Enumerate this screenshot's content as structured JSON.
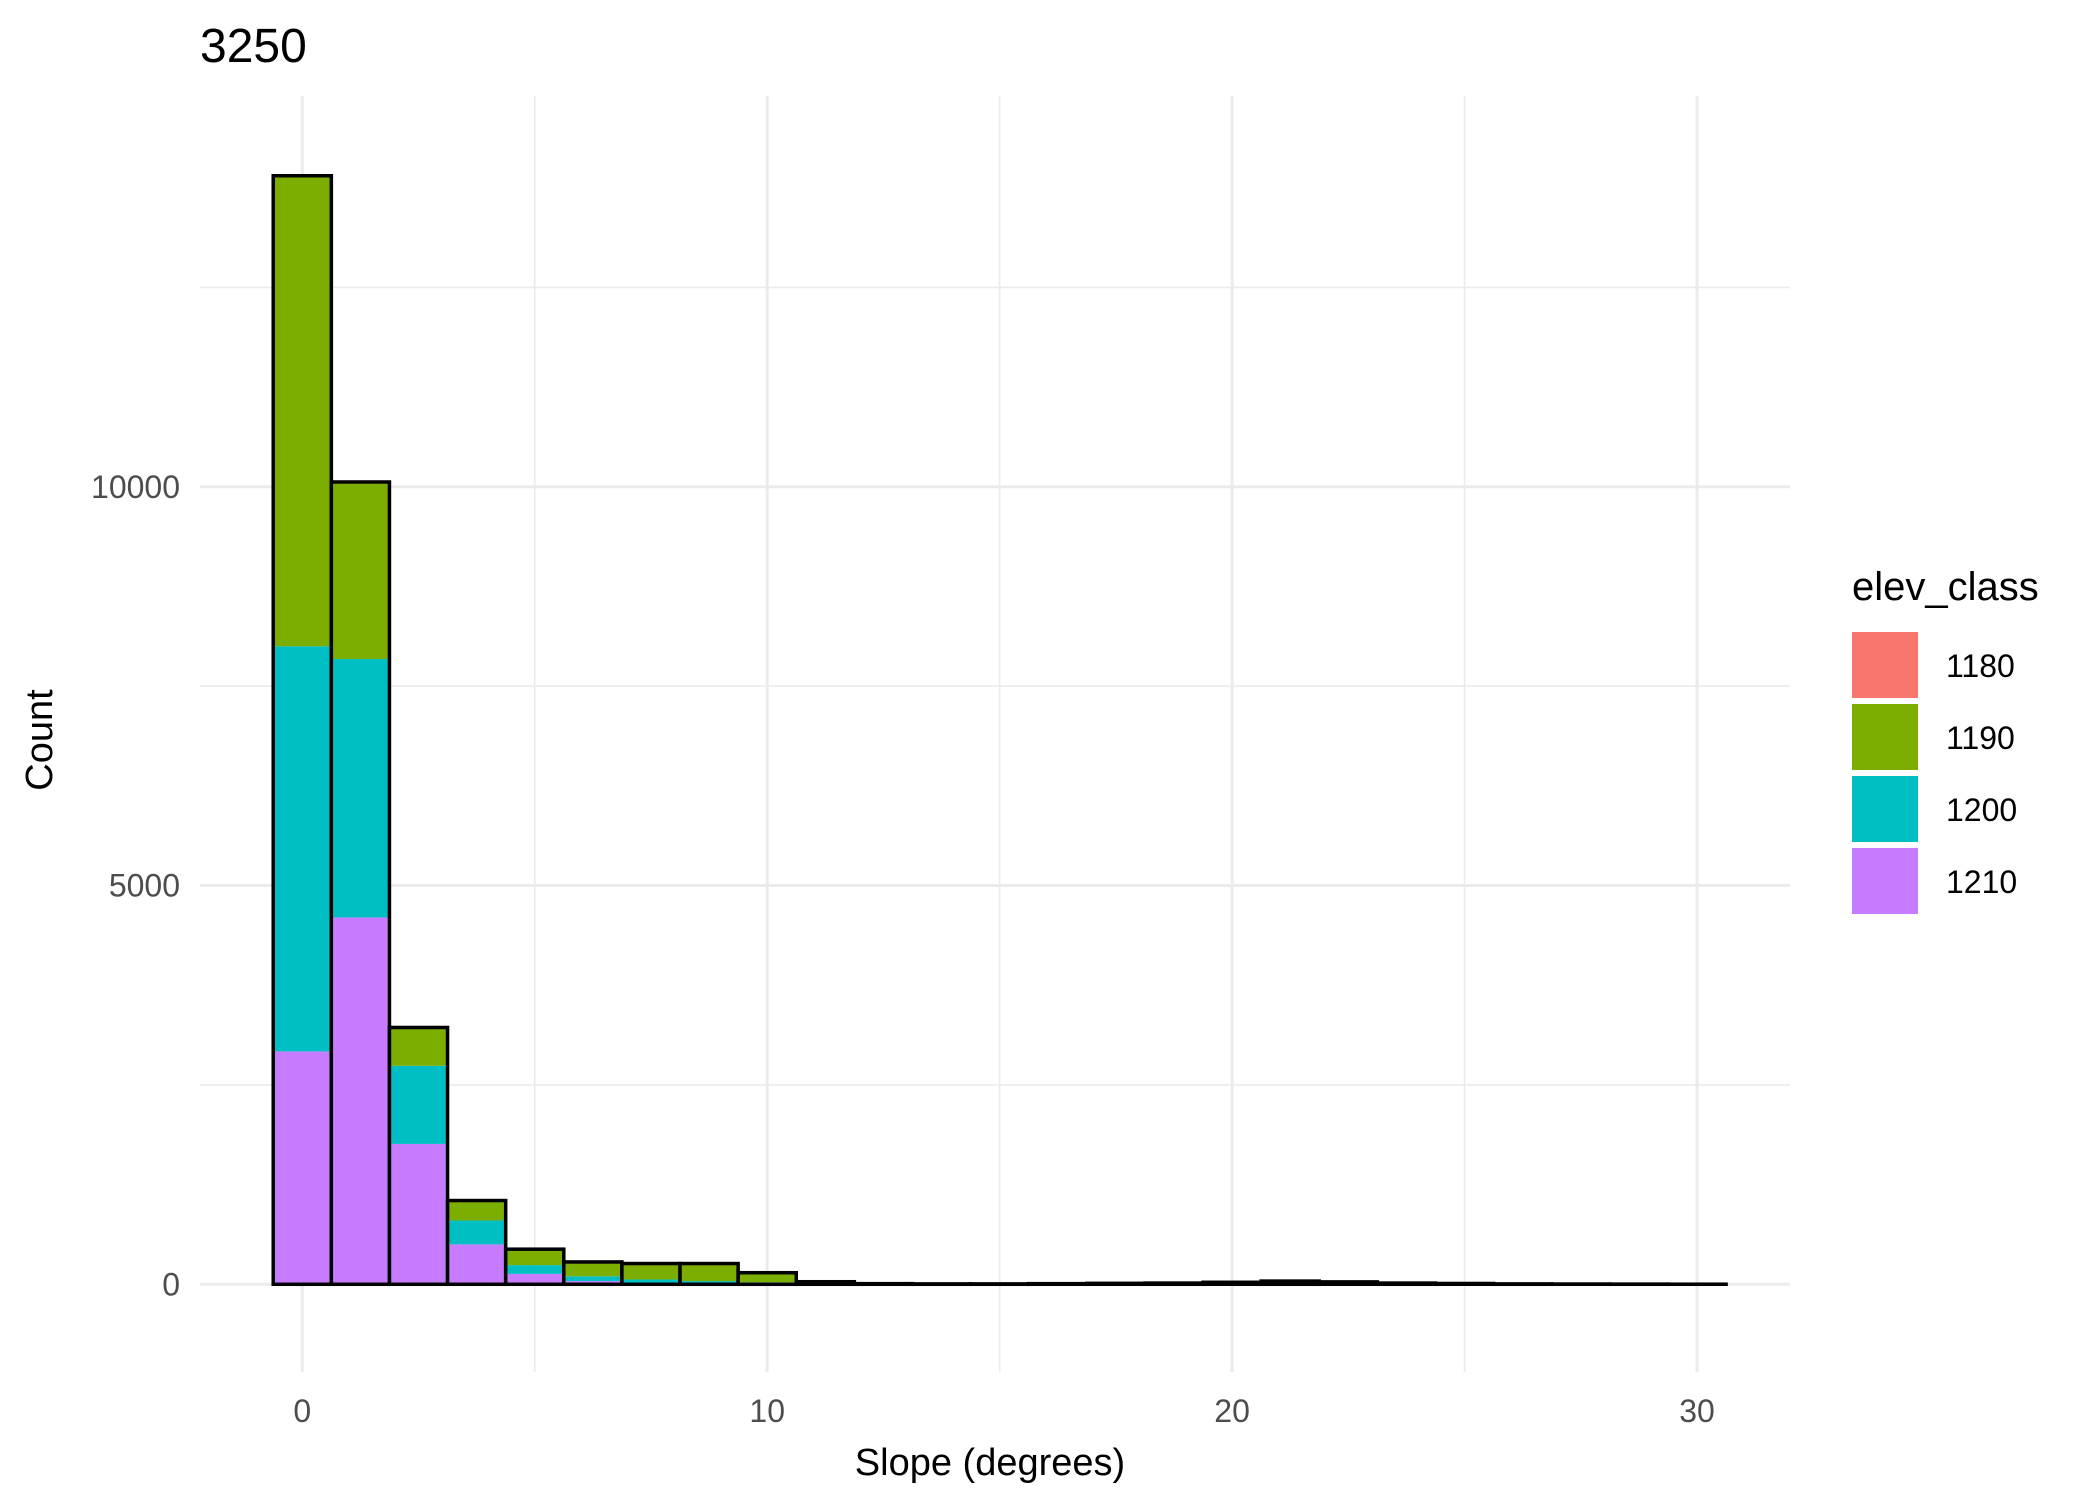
{
  "chart_data": {
    "type": "bar",
    "stacked": true,
    "title": "3250",
    "xlabel": "Slope (degrees)",
    "ylabel": "Count",
    "xlim": [
      -2.2,
      32.0
    ],
    "ylim": [
      -1100,
      14900
    ],
    "x_ticks": [
      0,
      10,
      20,
      30
    ],
    "y_ticks": [
      0,
      5000,
      10000
    ],
    "grid": true,
    "bin_width": 1.25,
    "bin_start": -0.625,
    "legend": {
      "title": "elev_class",
      "position": "right",
      "entries": [
        {
          "label": "1180",
          "color": "#F8766D"
        },
        {
          "label": "1190",
          "color": "#7CAE00"
        },
        {
          "label": "1200",
          "color": "#00BFC4"
        },
        {
          "label": "1210",
          "color": "#C77CFF"
        }
      ]
    },
    "bin_centers": [
      0,
      1.25,
      2.5,
      3.75,
      5,
      6.25,
      7.5,
      8.75,
      10,
      11.25,
      12.5,
      13.75,
      15,
      16.25,
      17.5,
      18.75,
      20,
      21.25,
      22.5,
      23.75,
      25,
      26.25,
      27.5,
      28.75,
      30
    ],
    "series": [
      {
        "name": "1210",
        "values": [
          2920,
          4600,
          1760,
          500,
          130,
          40,
          20,
          10,
          5,
          2,
          0,
          0,
          0,
          0,
          0,
          0,
          0,
          0,
          0,
          0,
          0,
          0,
          0,
          0,
          0
        ]
      },
      {
        "name": "1200",
        "values": [
          5080,
          3240,
          980,
          300,
          110,
          60,
          40,
          30,
          20,
          5,
          0,
          0,
          0,
          0,
          0,
          0,
          0,
          0,
          0,
          0,
          0,
          0,
          0,
          0,
          0
        ]
      },
      {
        "name": "1190",
        "values": [
          5900,
          2220,
          480,
          250,
          200,
          180,
          200,
          220,
          120,
          25,
          8,
          5,
          5,
          8,
          12,
          15,
          25,
          40,
          30,
          15,
          10,
          5,
          3,
          2,
          1
        ]
      },
      {
        "name": "1180",
        "values": [
          0,
          0,
          0,
          0,
          0,
          0,
          0,
          0,
          0,
          0,
          0,
          0,
          0,
          0,
          0,
          0,
          0,
          0,
          0,
          0,
          0,
          0,
          0,
          0,
          0
        ]
      }
    ]
  }
}
